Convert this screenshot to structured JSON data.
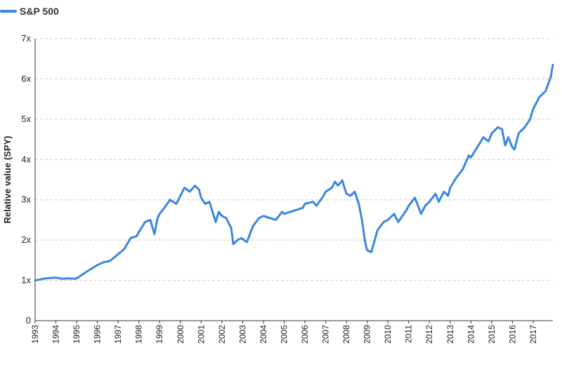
{
  "colors": {
    "series": "#3a87e0",
    "grid": "#cccccc",
    "axis": "#333333",
    "text": "#222222"
  },
  "chart_data": {
    "type": "line",
    "xlabel": "",
    "ylabel": "Relative value (SPY)",
    "ylim": [
      0,
      7
    ],
    "y_ticks": [
      0,
      1,
      2,
      3,
      4,
      5,
      6,
      7
    ],
    "y_tick_labels": [
      "0",
      "1x",
      "2x",
      "3x",
      "4x",
      "5x",
      "6x",
      "7x"
    ],
    "x_ticks": [
      "1993",
      "1994",
      "1995",
      "1996",
      "1997",
      "1998",
      "1999",
      "2000",
      "2001",
      "2002",
      "2003",
      "2004",
      "2005",
      "2006",
      "2007",
      "2008",
      "2009",
      "2010",
      "2011",
      "2012",
      "2013",
      "2014",
      "2015",
      "2016",
      "2017"
    ],
    "xlim": [
      1993.0,
      2017.95
    ],
    "grid": "horizontal dashed",
    "legend_position": "top-left",
    "series": [
      {
        "name": "S&P 500",
        "x": [
          1993.0,
          1993.5,
          1994.0,
          1994.3,
          1994.6,
          1994.9,
          1995.0,
          1995.5,
          1996.0,
          1996.3,
          1996.6,
          1997.0,
          1997.3,
          1997.6,
          1997.9,
          1998.0,
          1998.3,
          1998.55,
          1998.75,
          1998.9,
          1999.0,
          1999.3,
          1999.5,
          1999.8,
          2000.0,
          2000.2,
          2000.45,
          2000.7,
          2000.9,
          2001.0,
          2001.2,
          2001.4,
          2001.7,
          2001.85,
          2002.0,
          2002.2,
          2002.45,
          2002.55,
          2002.75,
          2002.95,
          2003.2,
          2003.5,
          2003.8,
          2004.0,
          2004.3,
          2004.6,
          2004.9,
          2005.0,
          2005.3,
          2005.6,
          2005.9,
          2006.0,
          2006.4,
          2006.55,
          2006.9,
          2007.0,
          2007.3,
          2007.45,
          2007.6,
          2007.8,
          2008.0,
          2008.2,
          2008.4,
          2008.6,
          2008.75,
          2008.9,
          2009.0,
          2009.2,
          2009.5,
          2009.8,
          2010.0,
          2010.3,
          2010.5,
          2010.9,
          2011.0,
          2011.3,
          2011.6,
          2011.8,
          2012.0,
          2012.3,
          2012.45,
          2012.7,
          2012.9,
          2013.0,
          2013.3,
          2013.6,
          2013.9,
          2014.0,
          2014.3,
          2014.6,
          2014.85,
          2015.0,
          2015.3,
          2015.5,
          2015.65,
          2015.8,
          2016.0,
          2016.1,
          2016.3,
          2016.6,
          2016.85,
          2017.0,
          2017.3,
          2017.6,
          2017.85,
          2017.95
        ],
        "y": [
          1.0,
          1.05,
          1.07,
          1.04,
          1.05,
          1.04,
          1.05,
          1.22,
          1.38,
          1.45,
          1.48,
          1.65,
          1.78,
          2.05,
          2.1,
          2.2,
          2.45,
          2.5,
          2.15,
          2.55,
          2.65,
          2.85,
          3.0,
          2.9,
          3.1,
          3.3,
          3.2,
          3.35,
          3.25,
          3.05,
          2.9,
          2.95,
          2.45,
          2.7,
          2.6,
          2.55,
          2.3,
          1.9,
          2.0,
          2.05,
          1.95,
          2.35,
          2.55,
          2.6,
          2.55,
          2.5,
          2.7,
          2.65,
          2.7,
          2.75,
          2.8,
          2.9,
          2.95,
          2.85,
          3.1,
          3.2,
          3.3,
          3.45,
          3.35,
          3.48,
          3.15,
          3.1,
          3.2,
          2.9,
          2.5,
          1.95,
          1.75,
          1.7,
          2.25,
          2.45,
          2.5,
          2.65,
          2.45,
          2.75,
          2.85,
          3.05,
          2.65,
          2.85,
          2.95,
          3.15,
          2.95,
          3.2,
          3.1,
          3.3,
          3.55,
          3.75,
          4.1,
          4.05,
          4.3,
          4.55,
          4.45,
          4.65,
          4.8,
          4.75,
          4.35,
          4.55,
          4.3,
          4.25,
          4.65,
          4.8,
          5.0,
          5.25,
          5.55,
          5.7,
          6.05,
          6.35
        ]
      }
    ]
  }
}
